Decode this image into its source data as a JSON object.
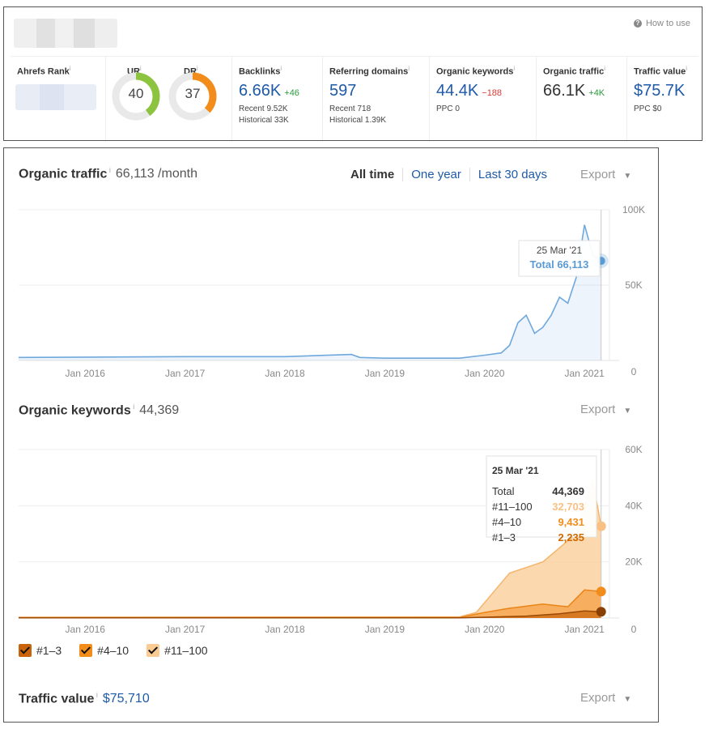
{
  "header": {
    "how_to_use": "How to use"
  },
  "metrics": {
    "ahrefs_rank": {
      "label": "Ahrefs Rank"
    },
    "ur": {
      "label": "UR",
      "value": "40",
      "fraction": 0.4,
      "color": "#8cc43f"
    },
    "dr": {
      "label": "DR",
      "value": "37",
      "fraction": 0.37,
      "color": "#f28d1c"
    },
    "backlinks": {
      "label": "Backlinks",
      "value": "6.66K",
      "delta": "+46",
      "recent": "Recent 9.52K",
      "historical": "Historical 33K"
    },
    "referring_domains": {
      "label": "Referring domains",
      "value": "597",
      "recent": "Recent 718",
      "historical": "Historical 1.39K"
    },
    "organic_keywords": {
      "label": "Organic keywords",
      "value": "44.4K",
      "delta": "−188",
      "ppc": "PPC 0"
    },
    "organic_traffic": {
      "label": "Organic traffic",
      "value": "66.1K",
      "delta": "+4K"
    },
    "traffic_value": {
      "label": "Traffic value",
      "value": "$75.7K",
      "ppc": "PPC $0"
    }
  },
  "traffic_section": {
    "title": "Organic traffic",
    "value": "66,113 /month",
    "tabs": [
      "All time",
      "One year",
      "Last 30 days"
    ],
    "active_tab": "All time",
    "export": "Export",
    "tooltip": {
      "date": "25 Mar '21",
      "total": "Total 66,113"
    }
  },
  "keywords_section": {
    "title": "Organic keywords",
    "value": "44,369",
    "export": "Export",
    "tooltip": {
      "date": "25 Mar '21",
      "rows": [
        {
          "label": "Total",
          "value": "44,369",
          "color": "#333333"
        },
        {
          "label": "#11–100",
          "value": "32,703",
          "color": "#f9c084"
        },
        {
          "label": "#4–10",
          "value": "9,431",
          "color": "#f28d1c"
        },
        {
          "label": "#1–3",
          "value": "2,235",
          "color": "#cc6a00"
        }
      ]
    },
    "legend": [
      {
        "label": "#1–3",
        "color": "#c8630a"
      },
      {
        "label": "#4–10",
        "color": "#f28d1c"
      },
      {
        "label": "#11–100",
        "color": "#fbcb94"
      }
    ]
  },
  "value_section": {
    "title": "Traffic value",
    "value": "$75,710",
    "export": "Export"
  },
  "chart_data": [
    {
      "type": "area",
      "title": "Organic traffic",
      "x_ticks": [
        "Jan 2016",
        "Jan 2017",
        "Jan 2018",
        "Jan 2019",
        "Jan 2020",
        "Jan 2021"
      ],
      "y_ticks": [
        "100K",
        "50K",
        "0"
      ],
      "ylim": [
        0,
        100000
      ],
      "color": "#6fa8dc",
      "series": [
        {
          "x": [
            "2015-05",
            "2016-01",
            "2017-01",
            "2018-01",
            "2018-09",
            "2018-10",
            "2019-01",
            "2019-10",
            "2020-01",
            "2020-03",
            "2020-04",
            "2020-05",
            "2020-06",
            "2020-07",
            "2020-08",
            "2020-09",
            "2020-10",
            "2020-11",
            "2020-12",
            "2021-01",
            "2021-02",
            "2021-03"
          ],
          "values": [
            2000,
            2200,
            2500,
            2500,
            4000,
            2000,
            1500,
            1500,
            3500,
            5000,
            10000,
            25000,
            30000,
            18000,
            22000,
            30000,
            42000,
            38000,
            55000,
            90000,
            70000,
            66113
          ]
        }
      ]
    },
    {
      "type": "area",
      "title": "Organic keywords",
      "x_ticks": [
        "Jan 2016",
        "Jan 2017",
        "Jan 2018",
        "Jan 2019",
        "Jan 2020",
        "Jan 2021"
      ],
      "y_ticks": [
        "60K",
        "40K",
        "20K",
        "0"
      ],
      "ylim": [
        0,
        60000
      ],
      "series": [
        {
          "name": "#11–100",
          "x": [
            "2015-05",
            "2019-10",
            "2019-12",
            "2020-04",
            "2020-08",
            "2020-12",
            "2021-02",
            "2021-03"
          ],
          "values": [
            300,
            400,
            2000,
            16000,
            20000,
            30000,
            49000,
            32703
          ]
        },
        {
          "name": "#4–10",
          "x": [
            "2015-05",
            "2019-10",
            "2020-01",
            "2020-04",
            "2020-08",
            "2020-11",
            "2021-01",
            "2021-03"
          ],
          "values": [
            150,
            200,
            2000,
            3500,
            5000,
            4000,
            10000,
            9431
          ]
        },
        {
          "name": "#1–3",
          "x": [
            "2015-05",
            "2019-10",
            "2020-01",
            "2020-06",
            "2020-10",
            "2021-01",
            "2021-03"
          ],
          "values": [
            80,
            100,
            300,
            700,
            1500,
            2500,
            2235
          ]
        }
      ]
    }
  ]
}
